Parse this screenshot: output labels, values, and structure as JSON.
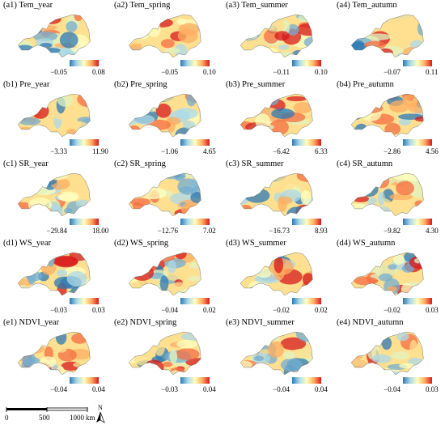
{
  "panels": [
    {
      "label": "(a1) Tem_year",
      "min": "−0.05",
      "max": "0.08"
    },
    {
      "label": "(a2) Tem_spring",
      "min": "−0.05",
      "max": "0.10"
    },
    {
      "label": "(a3) Tem_summer",
      "min": "−0.11",
      "max": "0.10"
    },
    {
      "label": "(a4) Tem_autumn",
      "min": "−0.07",
      "max": "0.11"
    },
    {
      "label": "(b1) Pre_year",
      "min": "−3.33",
      "max": "11.90"
    },
    {
      "label": "(b2) Pre_spring",
      "min": "−1.06",
      "max": "4.65"
    },
    {
      "label": "(b3) Pre_summer",
      "min": "−6.42",
      "max": "6.33"
    },
    {
      "label": "(b4) Pre_autumn",
      "min": "−2.86",
      "max": "4.56"
    },
    {
      "label": "(c1) SR_year",
      "min": "−29.84",
      "max": "18.00"
    },
    {
      "label": "(c2) SR_spring",
      "min": "−12.76",
      "max": "7.02"
    },
    {
      "label": "(c3) SR_summer",
      "min": "−16.73",
      "max": "8.93"
    },
    {
      "label": "(c4) SR_autumn",
      "min": "−9.82",
      "max": "4.30"
    },
    {
      "label": "(d1) WS_year",
      "min": "−0.03",
      "max": "0.03"
    },
    {
      "label": "(d2) WS_spring",
      "min": "−0.04",
      "max": "0.02"
    },
    {
      "label": "(d3) WS_summer",
      "min": "−0.02",
      "max": "0.02"
    },
    {
      "label": "(d4) WS_autumn",
      "min": "−0.02",
      "max": "0.03"
    },
    {
      "label": "(e1) NDVI_year",
      "min": "−0.04",
      "max": "0.04"
    },
    {
      "label": "(e2) NDVI_spring",
      "min": "−0.03",
      "max": "0.04"
    },
    {
      "label": "(e3) NDVI_summer",
      "min": "−0.04",
      "max": "0.04"
    },
    {
      "label": "(e4) NDVI_autumn",
      "min": "−0.04",
      "max": "0.03"
    }
  ],
  "scale_bar": {
    "ticks": [
      "0",
      "500",
      "1000"
    ],
    "unit": "km"
  },
  "north_arrow": {
    "label": "N"
  },
  "colors": {
    "low": "#2c7bb6",
    "mid": "#ffffbf",
    "high": "#d7191c"
  }
}
